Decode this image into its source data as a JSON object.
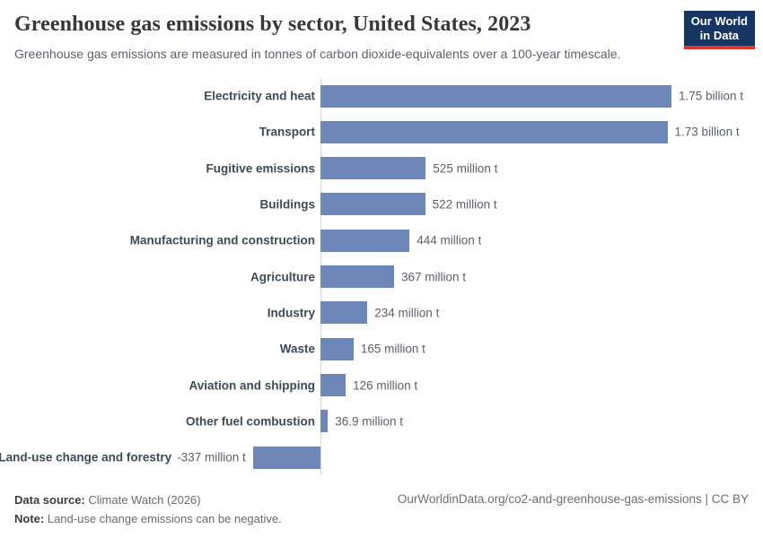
{
  "header": {
    "title": "Greenhouse gas emissions by sector, United States, 2023",
    "subtitle": "Greenhouse gas emissions are measured in tonnes of carbon dioxide-equivalents over a 100-year timescale.",
    "logo": {
      "line1": "Our World",
      "line2": "in Data",
      "bg_color": "#163560",
      "accent_color": "#d93a2b"
    }
  },
  "chart_data": {
    "type": "bar",
    "orientation": "horizontal",
    "title": "Greenhouse gas emissions by sector, United States, 2023",
    "unit": "million tonnes CO2-eq",
    "xlim": [
      -400,
      1750
    ],
    "grid": false,
    "legend": "none",
    "bar_color": "#6d87b8",
    "axis_color": "#d9d9d9",
    "categories": [
      "Electricity and heat",
      "Transport",
      "Fugitive emissions",
      "Buildings",
      "Manufacturing and construction",
      "Agriculture",
      "Industry",
      "Waste",
      "Aviation and shipping",
      "Other fuel combustion",
      "Land-use change and forestry"
    ],
    "values": [
      1750,
      1730,
      525,
      522,
      444,
      367,
      234,
      165,
      126,
      36.9,
      -337
    ],
    "value_labels": [
      "1.75 billion t",
      "1.73 billion t",
      "525 million t",
      "522 million t",
      "444 million t",
      "367 million t",
      "234 million t",
      "165 million t",
      "126 million t",
      "36.9 million t",
      "-337 million t"
    ]
  },
  "footer": {
    "datasource_label": "Data source:",
    "datasource_value": "Climate Watch (2026)",
    "note_label": "Note:",
    "note_value": "Land-use change emissions can be negative.",
    "link": "OurWorldinData.org/co2-and-greenhouse-gas-emissions | CC BY"
  }
}
